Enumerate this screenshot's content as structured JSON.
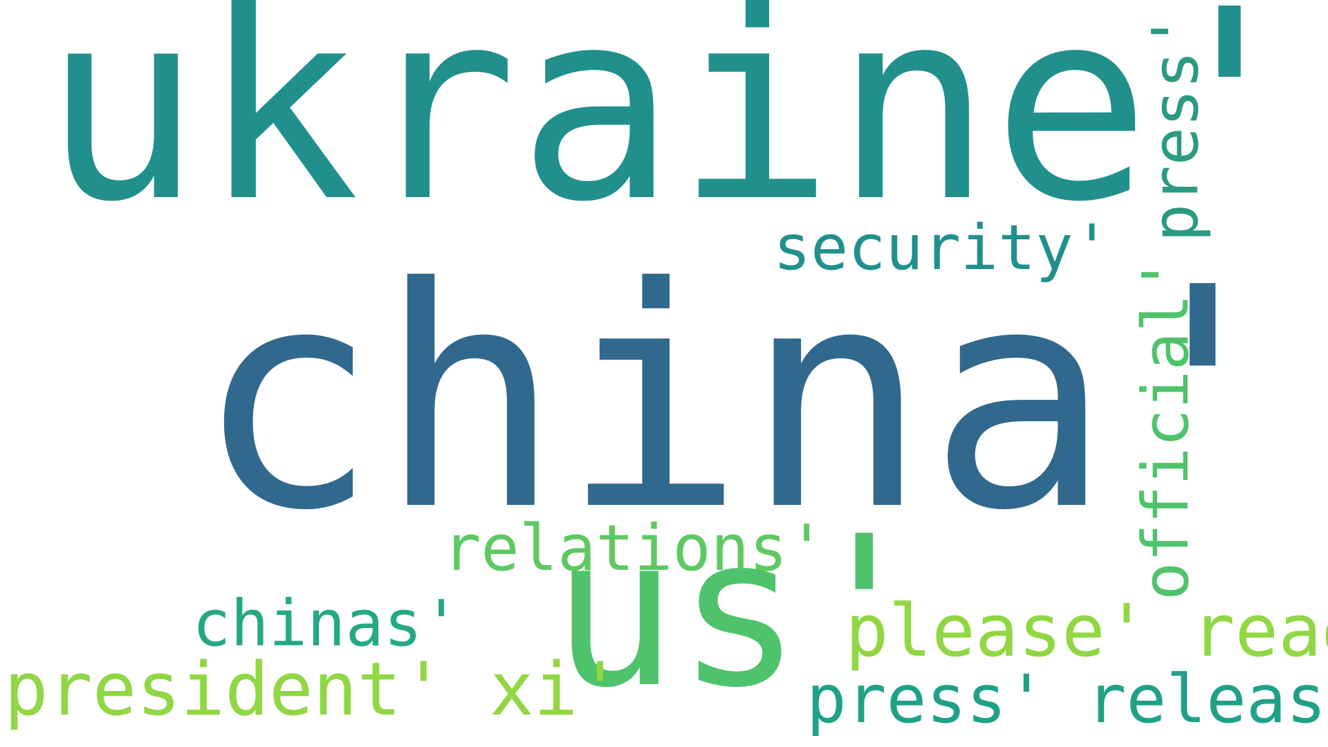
{
  "words": {
    "ukraine": {
      "text": "ukraine'",
      "color": "#21908d"
    },
    "china": {
      "text": "china'",
      "color": "#31688e"
    },
    "us": {
      "text": "us'",
      "color": "#4ec36b"
    },
    "security": {
      "text": "security'",
      "color": "#21908d"
    },
    "press": {
      "text": "press'",
      "color": "#2a9a82"
    },
    "official": {
      "text": "official'",
      "color": "#4ec36b"
    },
    "relations": {
      "text": "relations'",
      "color": "#5ec962"
    },
    "chinas": {
      "text": "chinas'",
      "color": "#23a983"
    },
    "president": {
      "text": "president' xi'",
      "color": "#90d743"
    },
    "please": {
      "text": "please' read'",
      "color": "#90d743"
    },
    "pressrel": {
      "text": "press' release'",
      "color": "#1fa187"
    }
  }
}
